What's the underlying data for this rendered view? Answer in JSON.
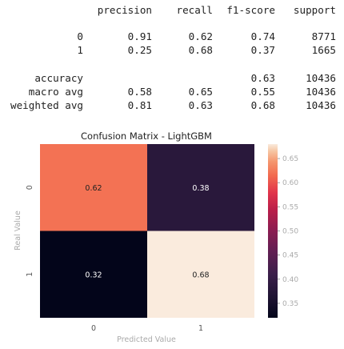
{
  "report": {
    "headers": [
      "precision",
      "recall",
      "f1-score",
      "support"
    ],
    "rows": [
      {
        "label": "0",
        "precision": "0.91",
        "recall": "0.62",
        "f1": "0.74",
        "support": "8771"
      },
      {
        "label": "1",
        "precision": "0.25",
        "recall": "0.68",
        "f1": "0.37",
        "support": "1665"
      }
    ],
    "summary": [
      {
        "label": "accuracy",
        "precision": "",
        "recall": "",
        "f1": "0.63",
        "support": "10436"
      },
      {
        "label": "macro avg",
        "precision": "0.58",
        "recall": "0.65",
        "f1": "0.55",
        "support": "10436"
      },
      {
        "label": "weighted avg",
        "precision": "0.81",
        "recall": "0.63",
        "f1": "0.68",
        "support": "10436"
      }
    ]
  },
  "chart_data": {
    "type": "heatmap",
    "title": "Confusion Matrix - LightGBM",
    "xlabel": "Predicted Value",
    "ylabel": "Real Value",
    "x_categories": [
      "0",
      "1"
    ],
    "y_categories": [
      "0",
      "1"
    ],
    "values": [
      [
        0.62,
        0.38
      ],
      [
        0.32,
        0.68
      ]
    ],
    "annotations": [
      [
        "0.62",
        "0.38"
      ],
      [
        "0.32",
        "0.68"
      ]
    ],
    "colormap": "rocket",
    "colorbar": {
      "range": [
        0.32,
        0.68
      ],
      "ticks": [
        "0.35",
        "0.40",
        "0.45",
        "0.50",
        "0.55",
        "0.60",
        "0.65"
      ]
    },
    "grid": false
  }
}
